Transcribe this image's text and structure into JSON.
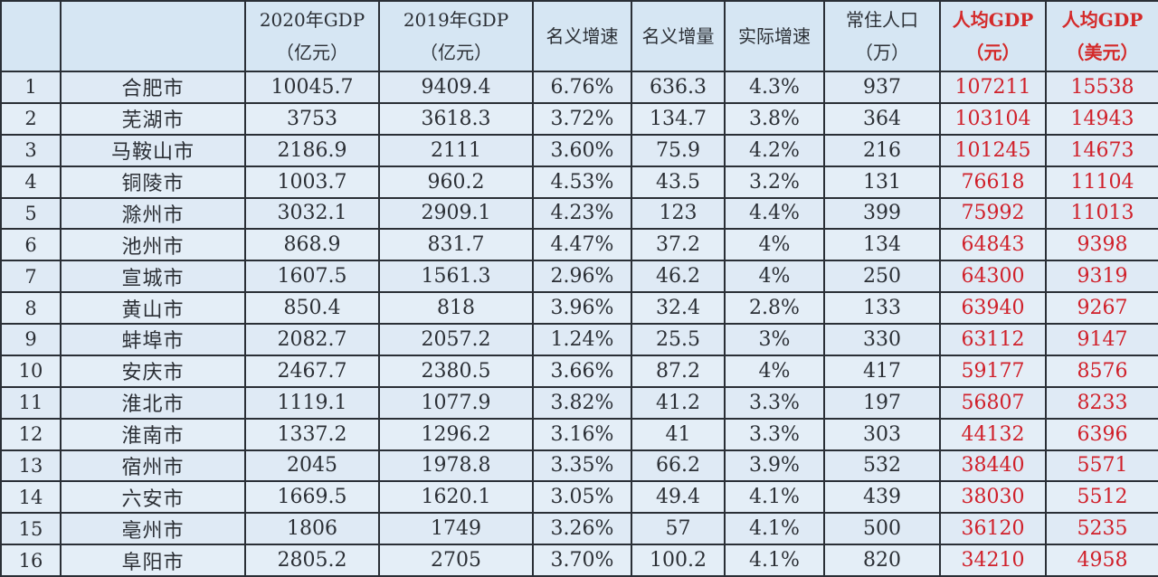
{
  "table": {
    "headers": [
      {
        "line1": "",
        "line2": ""
      },
      {
        "line1": "",
        "line2": ""
      },
      {
        "line1": "2020年GDP",
        "line2": "（亿元）"
      },
      {
        "line1": "2019年GDP",
        "line2": "（亿元）"
      },
      {
        "line1": "名义增速",
        "line2": ""
      },
      {
        "line1": "名义增量",
        "line2": ""
      },
      {
        "line1": "实际增速",
        "line2": ""
      },
      {
        "line1": "常住人口",
        "line2": "（万）"
      },
      {
        "line1": "人均GDP",
        "line2": "（元）"
      },
      {
        "line1": "人均GDP",
        "line2": "（美元）"
      }
    ],
    "highlight_color": "#d0202a",
    "rows": [
      {
        "rank": "1",
        "city": "合肥市",
        "gdp2020": "10045.7",
        "gdp2019": "9409.4",
        "nominal_growth": "6.76%",
        "nominal_increase": "636.3",
        "real_growth": "4.3%",
        "population": "937",
        "per_capita_cny": "107211",
        "per_capita_usd": "15538"
      },
      {
        "rank": "2",
        "city": "芜湖市",
        "gdp2020": "3753",
        "gdp2019": "3618.3",
        "nominal_growth": "3.72%",
        "nominal_increase": "134.7",
        "real_growth": "3.8%",
        "population": "364",
        "per_capita_cny": "103104",
        "per_capita_usd": "14943"
      },
      {
        "rank": "3",
        "city": "马鞍山市",
        "gdp2020": "2186.9",
        "gdp2019": "2111",
        "nominal_growth": "3.60%",
        "nominal_increase": "75.9",
        "real_growth": "4.2%",
        "population": "216",
        "per_capita_cny": "101245",
        "per_capita_usd": "14673"
      },
      {
        "rank": "4",
        "city": "铜陵市",
        "gdp2020": "1003.7",
        "gdp2019": "960.2",
        "nominal_growth": "4.53%",
        "nominal_increase": "43.5",
        "real_growth": "3.2%",
        "population": "131",
        "per_capita_cny": "76618",
        "per_capita_usd": "11104"
      },
      {
        "rank": "5",
        "city": "滁州市",
        "gdp2020": "3032.1",
        "gdp2019": "2909.1",
        "nominal_growth": "4.23%",
        "nominal_increase": "123",
        "real_growth": "4.4%",
        "population": "399",
        "per_capita_cny": "75992",
        "per_capita_usd": "11013"
      },
      {
        "rank": "6",
        "city": "池州市",
        "gdp2020": "868.9",
        "gdp2019": "831.7",
        "nominal_growth": "4.47%",
        "nominal_increase": "37.2",
        "real_growth": "4%",
        "population": "134",
        "per_capita_cny": "64843",
        "per_capita_usd": "9398"
      },
      {
        "rank": "7",
        "city": "宣城市",
        "gdp2020": "1607.5",
        "gdp2019": "1561.3",
        "nominal_growth": "2.96%",
        "nominal_increase": "46.2",
        "real_growth": "4%",
        "population": "250",
        "per_capita_cny": "64300",
        "per_capita_usd": "9319"
      },
      {
        "rank": "8",
        "city": "黄山市",
        "gdp2020": "850.4",
        "gdp2019": "818",
        "nominal_growth": "3.96%",
        "nominal_increase": "32.4",
        "real_growth": "2.8%",
        "population": "133",
        "per_capita_cny": "63940",
        "per_capita_usd": "9267"
      },
      {
        "rank": "9",
        "city": "蚌埠市",
        "gdp2020": "2082.7",
        "gdp2019": "2057.2",
        "nominal_growth": "1.24%",
        "nominal_increase": "25.5",
        "real_growth": "3%",
        "population": "330",
        "per_capita_cny": "63112",
        "per_capita_usd": "9147"
      },
      {
        "rank": "10",
        "city": "安庆市",
        "gdp2020": "2467.7",
        "gdp2019": "2380.5",
        "nominal_growth": "3.66%",
        "nominal_increase": "87.2",
        "real_growth": "4%",
        "population": "417",
        "per_capita_cny": "59177",
        "per_capita_usd": "8576"
      },
      {
        "rank": "11",
        "city": "淮北市",
        "gdp2020": "1119.1",
        "gdp2019": "1077.9",
        "nominal_growth": "3.82%",
        "nominal_increase": "41.2",
        "real_growth": "3.3%",
        "population": "197",
        "per_capita_cny": "56807",
        "per_capita_usd": "8233"
      },
      {
        "rank": "12",
        "city": "淮南市",
        "gdp2020": "1337.2",
        "gdp2019": "1296.2",
        "nominal_growth": "3.16%",
        "nominal_increase": "41",
        "real_growth": "3.3%",
        "population": "303",
        "per_capita_cny": "44132",
        "per_capita_usd": "6396"
      },
      {
        "rank": "13",
        "city": "宿州市",
        "gdp2020": "2045",
        "gdp2019": "1978.8",
        "nominal_growth": "3.35%",
        "nominal_increase": "66.2",
        "real_growth": "3.9%",
        "population": "532",
        "per_capita_cny": "38440",
        "per_capita_usd": "5571"
      },
      {
        "rank": "14",
        "city": "六安市",
        "gdp2020": "1669.5",
        "gdp2019": "1620.1",
        "nominal_growth": "3.05%",
        "nominal_increase": "49.4",
        "real_growth": "4.1%",
        "population": "439",
        "per_capita_cny": "38030",
        "per_capita_usd": "5512"
      },
      {
        "rank": "15",
        "city": "亳州市",
        "gdp2020": "1806",
        "gdp2019": "1749",
        "nominal_growth": "3.26%",
        "nominal_increase": "57",
        "real_growth": "4.1%",
        "population": "500",
        "per_capita_cny": "36120",
        "per_capita_usd": "5235"
      },
      {
        "rank": "16",
        "city": "阜阳市",
        "gdp2020": "2805.2",
        "gdp2019": "2705",
        "nominal_growth": "3.70%",
        "nominal_increase": "100.2",
        "real_growth": "4.1%",
        "population": "820",
        "per_capita_cny": "34210",
        "per_capita_usd": "4958"
      }
    ]
  }
}
